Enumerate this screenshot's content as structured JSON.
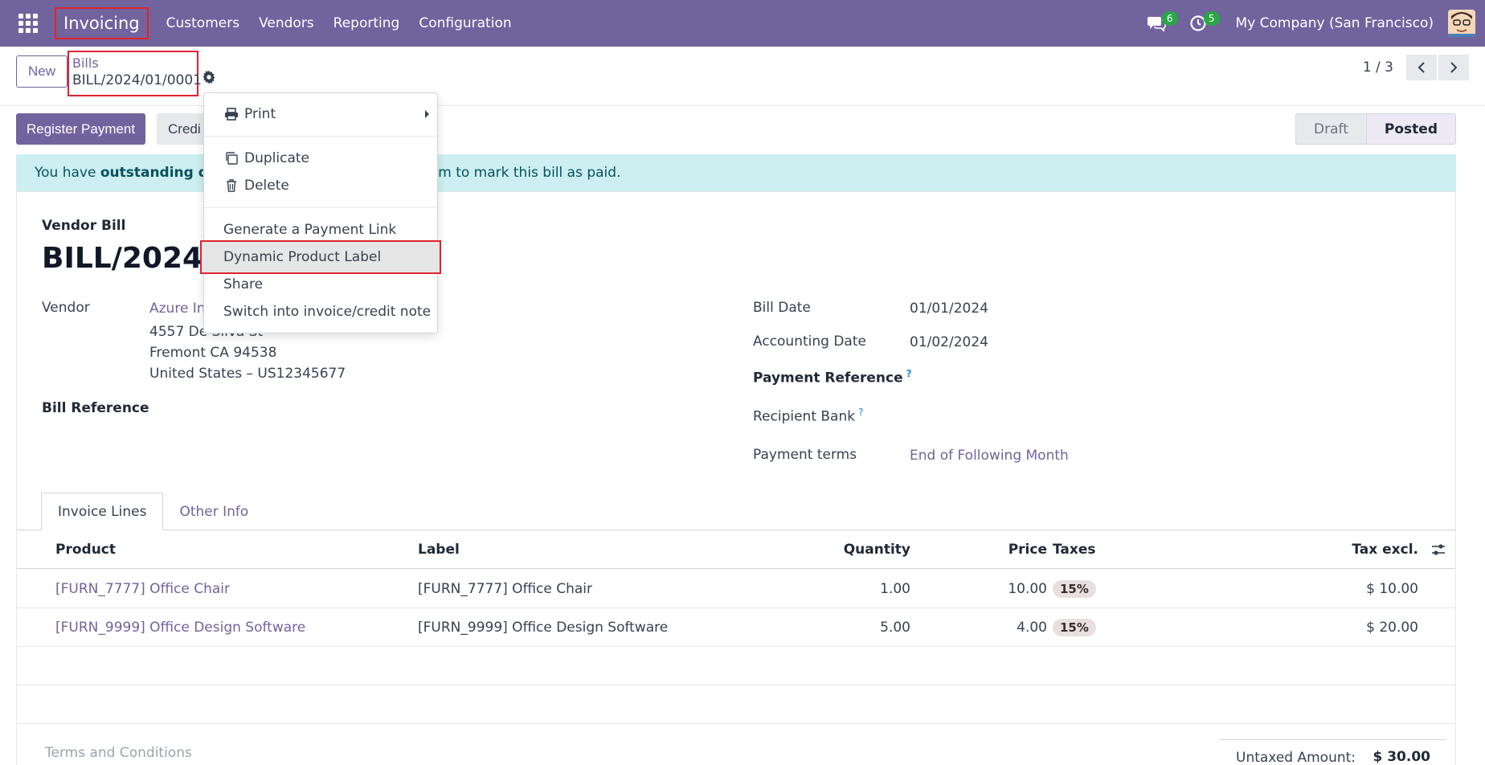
{
  "navbar": {
    "app_name": "Invoicing",
    "menu": [
      "Customers",
      "Vendors",
      "Reporting",
      "Configuration"
    ],
    "messages_count": "6",
    "activities_count": "5",
    "company": "My Company (San Francisco)"
  },
  "control": {
    "new_label": "New",
    "breadcrumb_parent": "Bills",
    "breadcrumb_current": "BILL/2024/01/0001",
    "pager": "1 / 3"
  },
  "actions": {
    "register_payment": "Register Payment",
    "credit_note": "Credi"
  },
  "status": {
    "stages": [
      "Draft",
      "Posted"
    ],
    "current": "Posted"
  },
  "alert": {
    "prefix": "You have ",
    "bold": "outstanding deb",
    "suffix": "hem to mark this bill as paid."
  },
  "form": {
    "doc_type": "Vendor Bill",
    "doc_name": "BILL/2024/0",
    "vendor_label": "Vendor",
    "vendor_name": "Azure In",
    "vendor_address_1": "4557 De Silva St",
    "vendor_address_2": "Fremont CA 94538",
    "vendor_address_3": "United States – US12345677",
    "bill_reference_label": "Bill Reference",
    "bill_date_label": "Bill Date",
    "bill_date": "01/01/2024",
    "accounting_date_label": "Accounting Date",
    "accounting_date": "01/02/2024",
    "payment_reference_label": "Payment Reference",
    "recipient_bank_label": "Recipient Bank",
    "payment_terms_label": "Payment terms",
    "payment_terms": "End of Following Month",
    "help_mark": "?"
  },
  "tabs": [
    "Invoice Lines",
    "Other Info"
  ],
  "lines": {
    "headers": {
      "product": "Product",
      "label": "Label",
      "quantity": "Quantity",
      "price": "Price",
      "taxes": "Taxes",
      "tax_excl": "Tax excl."
    },
    "rows": [
      {
        "product": "[FURN_7777] Office Chair",
        "label": "[FURN_7777] Office Chair",
        "quantity": "1.00",
        "price": "10.00",
        "tax": "15%",
        "subtotal": "$ 10.00"
      },
      {
        "product": "[FURN_9999] Office Design Software",
        "label": "[FURN_9999] Office Design Software",
        "quantity": "5.00",
        "price": "4.00",
        "tax": "15%",
        "subtotal": "$ 20.00"
      }
    ]
  },
  "footer": {
    "terms_placeholder": "Terms and Conditions",
    "untaxed_label": "Untaxed Amount:",
    "untaxed_value": "$ 30.00"
  },
  "dropdown": {
    "print": "Print",
    "duplicate": "Duplicate",
    "delete": "Delete",
    "payment_link": "Generate a Payment Link",
    "dynamic_label": "Dynamic Product Label",
    "share": "Share",
    "switch": "Switch into invoice/credit note"
  },
  "colors": {
    "brand": "#71639e",
    "alert_bg": "#cdeff1",
    "highlight_border": "#e0232e"
  }
}
